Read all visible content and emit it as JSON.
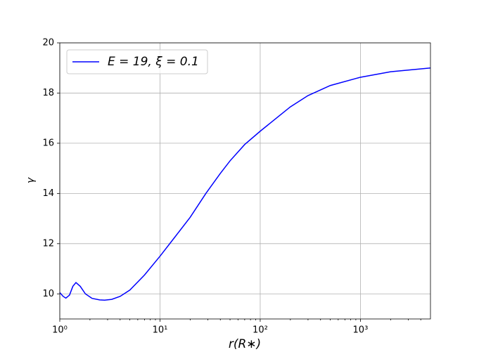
{
  "chart_data": {
    "type": "line",
    "x_label": "r(R∗)",
    "y_label": "γ",
    "x": [
      1,
      1.08,
      1.15,
      1.25,
      1.35,
      1.45,
      1.6,
      1.8,
      2.1,
      2.5,
      2.8,
      3.3,
      4,
      5,
      7,
      10,
      14,
      20,
      28.7,
      40,
      50,
      70,
      100,
      150,
      200,
      300,
      500,
      1000,
      2000,
      5000
    ],
    "series": [
      {
        "name": "E = 19, ξ = 0.1",
        "color": "#0000ff",
        "values": [
          10.05,
          9.9,
          9.83,
          9.95,
          10.3,
          10.45,
          10.3,
          10.0,
          9.82,
          9.76,
          9.75,
          9.78,
          9.9,
          10.15,
          10.75,
          11.5,
          12.25,
          13.05,
          14.0,
          14.8,
          15.3,
          15.95,
          16.48,
          17.05,
          17.45,
          17.9,
          18.3,
          18.63,
          18.85,
          19.0
        ]
      }
    ],
    "xlim": [
      1,
      5000
    ],
    "ylim": [
      9,
      20
    ],
    "xticks": [
      {
        "value": 1,
        "label": "10⁰"
      },
      {
        "value": 10,
        "label": "10¹"
      },
      {
        "value": 100,
        "label": "10²"
      },
      {
        "value": 1000,
        "label": "10³"
      }
    ],
    "yticks": [
      10,
      12,
      14,
      16,
      18,
      20
    ],
    "xscale": "log",
    "grid": true,
    "legend": "upper left"
  }
}
